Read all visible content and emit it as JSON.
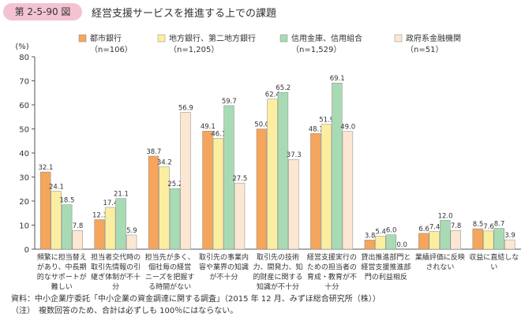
{
  "figure": {
    "number": "第 2-5-90 図",
    "title": "経営支援サービスを推進する上での課題",
    "source": "資料：中小企業庁委託「中小企業の資金調達に関する調査」（2015 年 12 月、みずほ総合研究所（株））",
    "note": "（注）　複数回答のため、合計は必ずしも 100％にはならない。"
  },
  "chart_data": {
    "type": "bar",
    "ylabel": "(%)",
    "ylim": [
      0,
      80
    ],
    "yticks": [
      "0",
      "10",
      "20",
      "30",
      "40",
      "50",
      "60",
      "70",
      "80"
    ],
    "legend_position": "top",
    "categories": [
      [
        "頻繁に担当替え",
        "があり、中長期",
        "的なサポートが",
        "難しい"
      ],
      [
        "担当者交代時の",
        "取引先情報の引",
        "継ぎ体制が不十",
        "分"
      ],
      [
        "担当先が多く、",
        "個社毎の経営",
        "ニーズを把握す",
        "る時間がない"
      ],
      [
        "取引先の事業内",
        "容や業界の知識",
        "が不十分"
      ],
      [
        "取引先の技術",
        "力、開発力、知",
        "的財産に関する",
        "知識が不十分"
      ],
      [
        "経営支援実行の",
        "ための担当者の",
        "育成・教育が不",
        "十分"
      ],
      [
        "貸出推進部門と",
        "経営支援推進部",
        "門の利益相反"
      ],
      [
        "業績評価に反映",
        "されない"
      ],
      [
        "収益に直結しな",
        "い"
      ]
    ],
    "series": [
      {
        "name": "都市銀行",
        "sub": "（n=106）",
        "color": "#f5a55c",
        "values": [
          32.1,
          12.3,
          38.7,
          49.1,
          50.0,
          48.1,
          3.8,
          6.6,
          8.5
        ]
      },
      {
        "name": "地方銀行、第二地方銀行",
        "sub": "（n=1,205）",
        "color": "#fbeea0",
        "values": [
          24.1,
          17.4,
          34.2,
          46.1,
          62.4,
          51.9,
          5.4,
          7.4,
          7.6
        ]
      },
      {
        "name": "信用金庫、信用組合",
        "sub": "（n=1,529）",
        "color": "#a8dbb4",
        "values": [
          18.5,
          21.1,
          25.2,
          59.7,
          65.2,
          69.1,
          6.0,
          12.0,
          8.7
        ]
      },
      {
        "name": "政府系金融機関",
        "sub": "（n=51）",
        "color": "#fbe7d2",
        "values": [
          7.8,
          5.9,
          56.9,
          27.5,
          37.3,
          49.0,
          0.0,
          7.8,
          3.9
        ]
      }
    ]
  }
}
